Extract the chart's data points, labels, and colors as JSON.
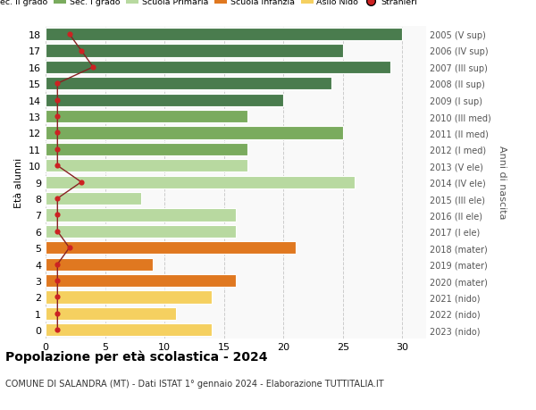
{
  "ages": [
    18,
    17,
    16,
    15,
    14,
    13,
    12,
    11,
    10,
    9,
    8,
    7,
    6,
    5,
    4,
    3,
    2,
    1,
    0
  ],
  "right_labels": [
    "2005 (V sup)",
    "2006 (IV sup)",
    "2007 (III sup)",
    "2008 (II sup)",
    "2009 (I sup)",
    "2010 (III med)",
    "2011 (II med)",
    "2012 (I med)",
    "2013 (V ele)",
    "2014 (IV ele)",
    "2015 (III ele)",
    "2016 (II ele)",
    "2017 (I ele)",
    "2018 (mater)",
    "2019 (mater)",
    "2020 (mater)",
    "2021 (nido)",
    "2022 (nido)",
    "2023 (nido)"
  ],
  "bar_values": [
    30,
    25,
    29,
    24,
    20,
    17,
    25,
    17,
    17,
    26,
    8,
    16,
    16,
    21,
    9,
    16,
    14,
    11,
    14
  ],
  "bar_colors": [
    "#4a7c4e",
    "#4a7c4e",
    "#4a7c4e",
    "#4a7c4e",
    "#4a7c4e",
    "#7aab5e",
    "#7aab5e",
    "#7aab5e",
    "#b8d9a0",
    "#b8d9a0",
    "#b8d9a0",
    "#b8d9a0",
    "#b8d9a0",
    "#e07820",
    "#e07820",
    "#e07820",
    "#f5d060",
    "#f5d060",
    "#f5d060"
  ],
  "stranieri_values": [
    2,
    3,
    4,
    1,
    1,
    1,
    1,
    1,
    1,
    3,
    1,
    1,
    1,
    2,
    1,
    1,
    1,
    1,
    1
  ],
  "legend_labels": [
    "Sec. II grado",
    "Sec. I grado",
    "Scuola Primaria",
    "Scuola Infanzia",
    "Asilo Nido",
    "Stranieri"
  ],
  "legend_colors": [
    "#4a7c4e",
    "#7aab5e",
    "#b8d9a0",
    "#e07820",
    "#f5d060",
    "#c0392b"
  ],
  "ylabel": "Età alunni",
  "right_ylabel": "Anni di nascita",
  "title": "Popolazione per età scolastica - 2024",
  "subtitle": "COMUNE DI SALANDRA (MT) - Dati ISTAT 1° gennaio 2024 - Elaborazione TUTTITALIA.IT",
  "xlim": [
    0,
    32
  ],
  "xticks": [
    0,
    5,
    10,
    15,
    20,
    25,
    30
  ],
  "bar_height": 0.78,
  "stranieri_color": "#cc2222",
  "stranieri_line_color": "#882222",
  "bg_color": "#f9f9f9",
  "grid_color": "#cccccc"
}
